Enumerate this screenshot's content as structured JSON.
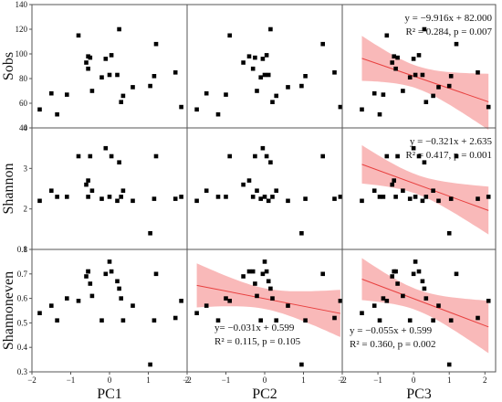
{
  "chart_data": {
    "type": "scatter",
    "layout": "3x3 scatter matrix",
    "columns": [
      "PC1",
      "PC2",
      "PC3"
    ],
    "rows": [
      {
        "ylabel": "Sobs",
        "yticks": [
          40,
          60,
          80,
          100,
          120,
          140
        ],
        "ylim": [
          40,
          140
        ]
      },
      {
        "ylabel": "Shannon",
        "yticks": [
          1,
          2,
          3,
          4
        ],
        "ylim": [
          1,
          4
        ]
      },
      {
        "ylabel": "Shannoneven",
        "yticks": [
          0.3,
          0.4,
          0.5,
          0.6,
          0.7,
          0.8
        ],
        "ylim": [
          0.3,
          0.8
        ]
      }
    ],
    "xticks": [
      -2,
      -1,
      0,
      1,
      2
    ],
    "xlims": [
      [
        -2,
        2
      ],
      [
        -2,
        2
      ],
      [
        -2,
        2.3
      ]
    ],
    "pc1": [
      -1.8,
      -1.5,
      -1.35,
      -1.1,
      -0.8,
      -0.6,
      -0.55,
      -0.55,
      -0.5,
      -0.45,
      -0.2,
      -0.1,
      0,
      0.05,
      0.2,
      0.25,
      0.3,
      0.35,
      0.6,
      1.05,
      1.15,
      1.2,
      1.7,
      1.85
    ],
    "pc2": [
      -1.75,
      -1.5,
      -1.2,
      -1.0,
      -0.9,
      -0.55,
      -0.4,
      -0.3,
      -0.25,
      -0.2,
      -0.1,
      -0.05,
      0,
      0.05,
      0.1,
      0.15,
      0.2,
      0.3,
      0.6,
      0.95,
      1.05,
      1.5,
      1.8,
      1.95
    ],
    "pc3": [
      -1.45,
      -1.1,
      -0.95,
      -0.85,
      -0.75,
      -0.6,
      -0.55,
      -0.5,
      -0.45,
      -0.3,
      -0.1,
      0,
      0.05,
      0.15,
      0.25,
      0.3,
      0.35,
      0.55,
      0.7,
      1.0,
      1.05,
      1.2,
      1.8,
      2.1
    ],
    "sobs": [
      55,
      68,
      51,
      67,
      115,
      93,
      98,
      88,
      97,
      70,
      81,
      96,
      83,
      99,
      83,
      120,
      61,
      66,
      73,
      74,
      82,
      108,
      85,
      57
    ],
    "shannon": [
      2.2,
      2.45,
      2.3,
      2.3,
      3.3,
      2.6,
      2.7,
      2.3,
      3.3,
      2.45,
      2.25,
      3.5,
      2.3,
      3.3,
      2.2,
      3.15,
      2.3,
      2.45,
      2.2,
      1.4,
      2.25,
      3.3,
      2.25,
      2.3
    ],
    "shannoneven": [
      0.54,
      0.57,
      0.51,
      0.6,
      0.59,
      0.69,
      0.71,
      0.71,
      0.66,
      0.61,
      0.51,
      0.7,
      0.75,
      0.71,
      0.67,
      0.64,
      0.6,
      0.51,
      0.57,
      0.33,
      0.51,
      0.7,
      0.52,
      0.59
    ],
    "regressions": [
      {
        "row": 0,
        "col": 2,
        "equation": "y = −9.916x + 82.000",
        "r2": "R² = 0.284, p = 0.007",
        "slope": -9.916,
        "intercept": 82.0,
        "text_anchor": "top-right"
      },
      {
        "row": 1,
        "col": 2,
        "equation": "y = −0.321x + 2.635",
        "r2": "R² = 0.417, p = 0.001",
        "slope": -0.321,
        "intercept": 2.635,
        "text_anchor": "top-right"
      },
      {
        "row": 2,
        "col": 1,
        "equation": "y= −0.031x + 0.599",
        "r2": "R² = 0.115, p = 0.105",
        "slope": -0.031,
        "intercept": 0.599,
        "text_anchor": "bottom-right"
      },
      {
        "row": 2,
        "col": 2,
        "equation": "y = −0.055x + 0.599",
        "r2": "R² = 0.360, p = 0.002",
        "slope": -0.055,
        "intercept": 0.599,
        "text_anchor": "bottom-left"
      }
    ],
    "colors": {
      "points": "#000000",
      "line": "#e8403f",
      "band": "#f7a1a1",
      "frame": "#555555"
    }
  }
}
